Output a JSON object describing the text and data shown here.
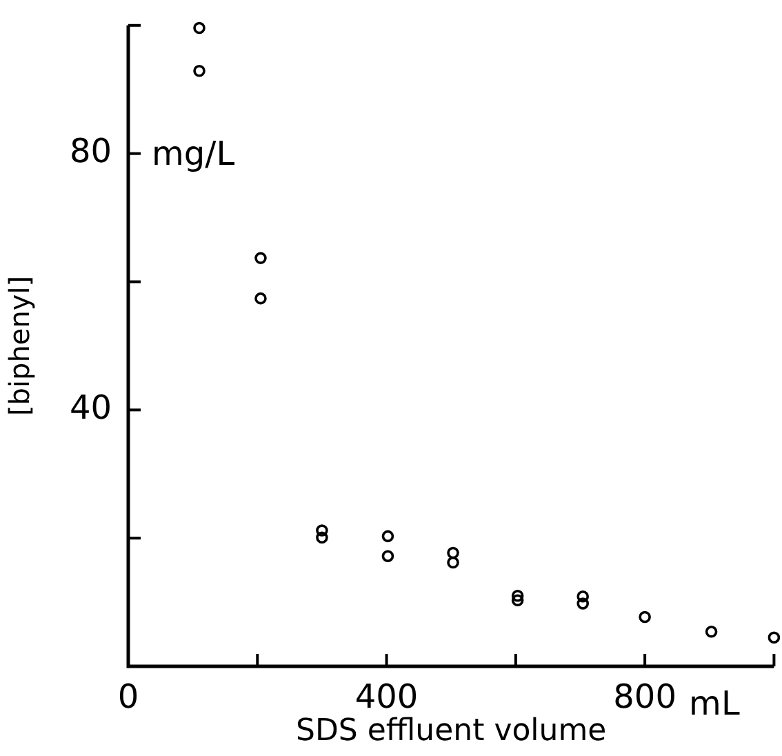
{
  "chart_data": {
    "type": "scatter",
    "xlabel": "SDS effluent volume",
    "ylabel": "[biphenyl]",
    "annotations": [
      "mg/L",
      "mL"
    ],
    "x": [
      110,
      110,
      205,
      205,
      300,
      300,
      402,
      402,
      503,
      503,
      603,
      603,
      704,
      704,
      800,
      903,
      1000
    ],
    "series": [
      {
        "color": "#000000",
        "values": [
          99.6,
          92.9,
          63.7,
          57.4,
          21.2,
          20.1,
          20.3,
          17.2,
          17.7,
          16.2,
          11,
          10.3,
          10.9,
          9.8,
          7.7,
          5.4,
          4.5
        ]
      }
    ],
    "xlim": [
      0,
      1000
    ],
    "xticks": [
      0,
      {
        "value": 200,
        "label": null
      },
      400,
      {
        "value": 600,
        "label": null
      },
      800,
      {
        "value": 1000,
        "label": null
      }
    ],
    "ylim": [
      0,
      100
    ],
    "yticks": [
      {
        "value": 20,
        "label": null
      },
      40,
      {
        "value": 60,
        "label": null
      },
      80,
      {
        "value": 100,
        "label": null
      }
    ],
    "grid": false,
    "legend": false,
    "marker": "circle"
  }
}
